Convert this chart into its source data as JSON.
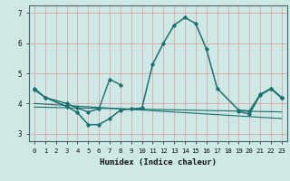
{
  "xlabel": "Humidex (Indice chaleur)",
  "xlim": [
    -0.5,
    23.5
  ],
  "ylim": [
    2.75,
    7.25
  ],
  "yticks": [
    3,
    4,
    5,
    6,
    7
  ],
  "xticks": [
    0,
    1,
    2,
    3,
    4,
    5,
    6,
    7,
    8,
    9,
    10,
    11,
    12,
    13,
    14,
    15,
    16,
    17,
    18,
    19,
    20,
    21,
    22,
    23
  ],
  "background_color": "#cde8e5",
  "grid_color": "#dba8a8",
  "line_color": "#1a7070",
  "line1_x": [
    0,
    1,
    3,
    4,
    5,
    6,
    7,
    8,
    9,
    10,
    11,
    12,
    13,
    14,
    15,
    16,
    17,
    19,
    20,
    21,
    22,
    23
  ],
  "line1_y": [
    4.5,
    4.2,
    3.9,
    3.7,
    3.3,
    3.3,
    3.5,
    3.78,
    3.82,
    3.85,
    5.3,
    6.0,
    6.6,
    6.85,
    6.65,
    5.8,
    4.5,
    3.78,
    3.75,
    4.3,
    4.5,
    4.2
  ],
  "line2_x": [
    0,
    1,
    3,
    4,
    5,
    6,
    7,
    8
  ],
  "line2_y": [
    4.45,
    4.2,
    4.0,
    3.85,
    3.72,
    3.82,
    4.8,
    4.62
  ],
  "line3_x": [
    0,
    23
  ],
  "line3_y": [
    4.0,
    3.5
  ],
  "line4_x": [
    0,
    23
  ],
  "line4_y": [
    3.88,
    3.72
  ],
  "line5_x": [
    19,
    20,
    21,
    22,
    23
  ],
  "line5_y": [
    3.73,
    3.65,
    4.28,
    4.48,
    4.18
  ]
}
